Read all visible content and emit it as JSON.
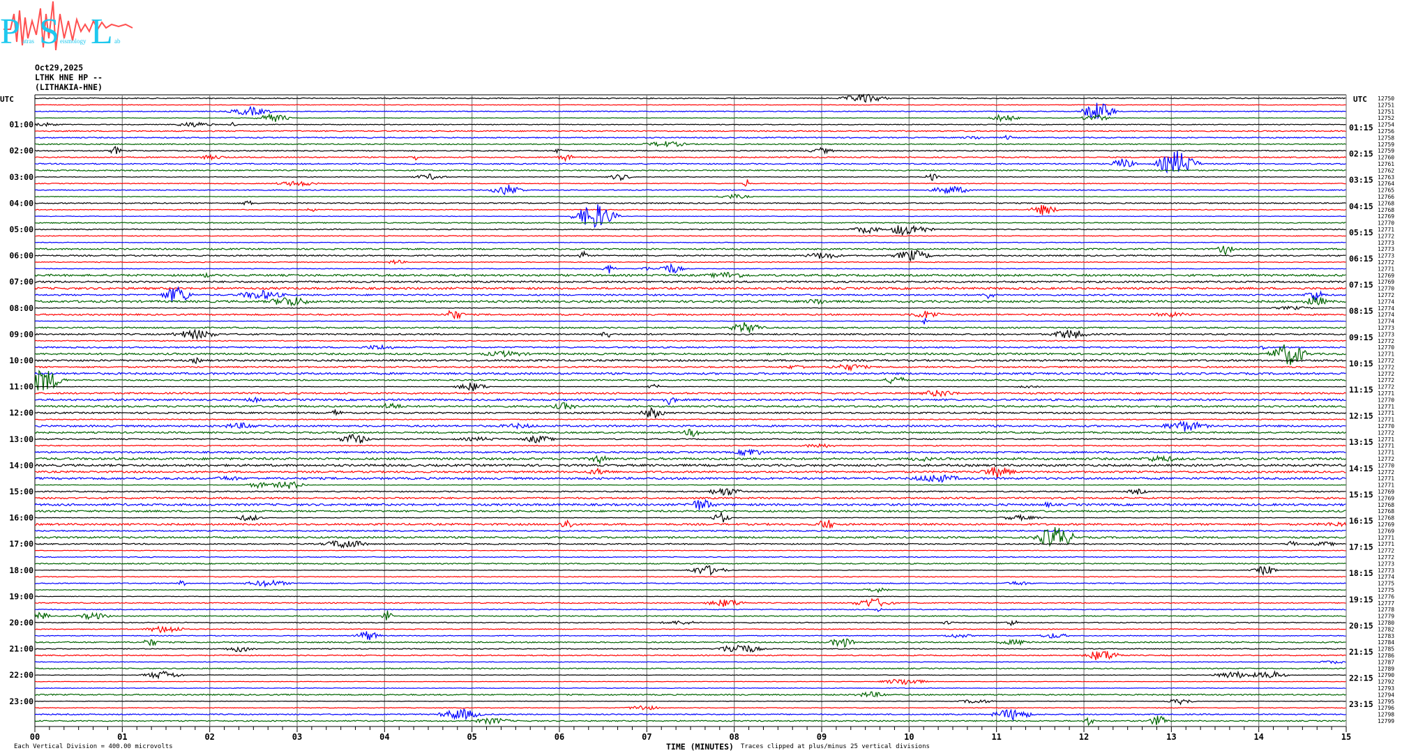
{
  "logo": {
    "big_letters": [
      "P",
      "S",
      "L"
    ],
    "small_words": [
      "atras",
      "eismology",
      "ab"
    ],
    "letter_color": "#1ec8ee",
    "wave_color": "#ff5050"
  },
  "header": {
    "date": "Oct29,2025",
    "station": "LTHK HNE HP --",
    "site": "(LITHAKIA-HNE)"
  },
  "chart_data": {
    "type": "line",
    "title": "",
    "timezone_label_left": "UTC",
    "timezone_label_right": "UTC",
    "trace_colors": [
      "#000000",
      "#ff0000",
      "#0000ff",
      "#006400"
    ],
    "left_hour_labels": [
      "01:00",
      "02:00",
      "03:00",
      "04:00",
      "05:00",
      "06:00",
      "07:00",
      "08:00",
      "09:00",
      "10:00",
      "11:00",
      "12:00",
      "13:00",
      "14:00",
      "15:00",
      "16:00",
      "17:00",
      "18:00",
      "19:00",
      "20:00",
      "21:00",
      "22:00",
      "23:00"
    ],
    "right_hour_labels": [
      "01:15",
      "02:15",
      "03:15",
      "04:15",
      "05:15",
      "06:15",
      "07:15",
      "08:15",
      "09:15",
      "10:15",
      "11:15",
      "12:15",
      "13:15",
      "14:15",
      "15:15",
      "16:15",
      "17:15",
      "18:15",
      "19:15",
      "20:15",
      "21:15",
      "22:15",
      "23:15"
    ],
    "trace_offsets": [
      "12750",
      "12751",
      "12751",
      "12752",
      "12754",
      "12756",
      "12758",
      "12759",
      "12759",
      "12760",
      "12761",
      "12762",
      "12763",
      "12764",
      "12765",
      "12766",
      "12768",
      "12768",
      "12769",
      "12770",
      "12771",
      "12772",
      "12773",
      "12773",
      "12773",
      "12772",
      "12771",
      "12769",
      "12769",
      "12770",
      "12772",
      "12774",
      "12774",
      "12774",
      "12774",
      "12773",
      "12773",
      "12772",
      "12770",
      "12771",
      "12772",
      "12772",
      "12772",
      "12772",
      "12772",
      "12771",
      "12770",
      "12771",
      "12771",
      "12771",
      "12770",
      "12772",
      "12771",
      "12771",
      "12771",
      "12772",
      "12770",
      "12772",
      "12771",
      "12771",
      "12769",
      "12769",
      "12768",
      "12768",
      "12768",
      "12769",
      "12769",
      "12771",
      "12771",
      "12772",
      "12772",
      "12773",
      "12773",
      "12774",
      "12775",
      "12775",
      "12776",
      "12777",
      "12778",
      "12779",
      "12780",
      "12782",
      "12783",
      "12784",
      "12785",
      "12786",
      "12787",
      "12789",
      "12790",
      "12792",
      "12793",
      "12794",
      "12795",
      "12796",
      "12798",
      "12799",
      "12801"
    ],
    "x_ticks": [
      "00",
      "01",
      "02",
      "03",
      "04",
      "05",
      "06",
      "07",
      "08",
      "09",
      "10",
      "11",
      "12",
      "13",
      "14",
      "15"
    ],
    "xlim": [
      0,
      15
    ],
    "xlabel": "TIME (MINUTES)",
    "scale_note": "Each Vertical Division =  400.00 microvolts",
    "clip_note": "Traces clipped at plus/minus 25 vertical divisions",
    "grid": true
  }
}
